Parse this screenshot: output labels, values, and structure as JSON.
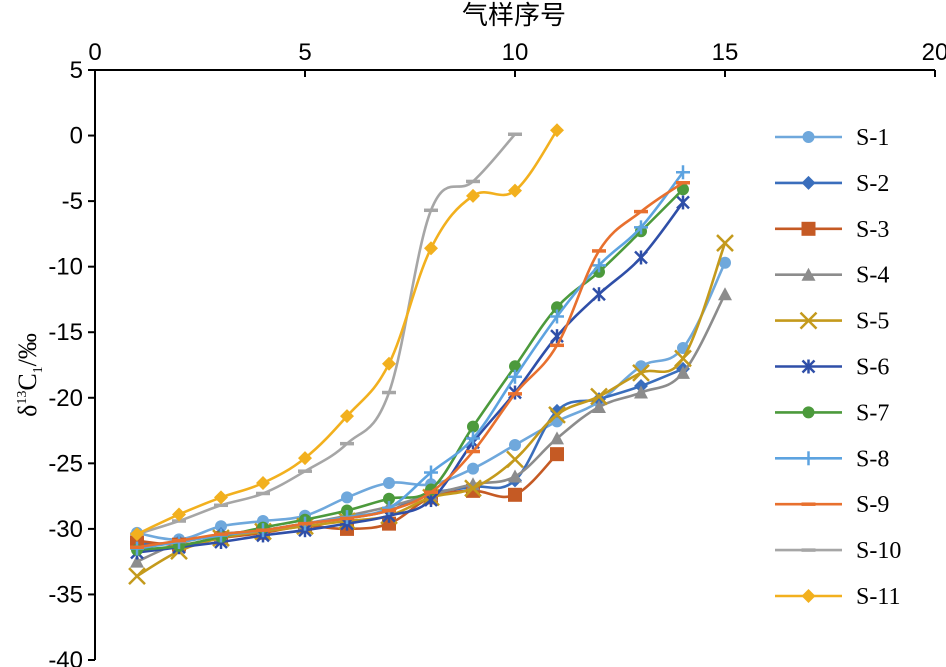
{
  "chart_data": {
    "type": "line",
    "xlabel": "气样序号",
    "ylabel": "δ13C1/‰",
    "ylabel_parts": {
      "delta": "δ",
      "sup": "13",
      "base": "C",
      "sub": "1",
      "unit": "/‰"
    },
    "xlim": [
      0,
      20
    ],
    "ylim": [
      -40,
      5
    ],
    "xticks": [
      0,
      5,
      10,
      15,
      20
    ],
    "yticks": [
      5,
      0,
      -5,
      -10,
      -15,
      -20,
      -25,
      -30,
      -35,
      -40
    ],
    "x_axis_position": "top",
    "grid": false,
    "legend_position": "right",
    "series": [
      {
        "name": "S-1",
        "color": "#6FA8DC",
        "marker": "circle",
        "x": [
          1,
          2,
          3,
          4,
          5,
          6,
          7,
          8,
          9,
          10,
          11,
          12,
          13,
          14,
          15
        ],
        "y": [
          -30.3,
          -30.8,
          -29.8,
          -29.4,
          -29.0,
          -27.6,
          -26.5,
          -26.6,
          -25.4,
          -23.6,
          -21.8,
          -20.3,
          -17.6,
          -16.2,
          -9.7
        ]
      },
      {
        "name": "S-2",
        "color": "#3A6EBC",
        "marker": "diamond",
        "x": [
          1,
          2,
          3,
          4,
          5,
          6,
          7,
          8,
          9,
          10,
          11,
          12,
          13,
          14
        ],
        "y": [
          -31.2,
          -31.0,
          -30.4,
          -30.1,
          -29.6,
          -29.2,
          -28.6,
          -27.3,
          -26.8,
          -26.3,
          -21.0,
          -20.1,
          -19.1,
          -17.8
        ]
      },
      {
        "name": "S-3",
        "color": "#C55A24",
        "marker": "square",
        "x": [
          1,
          2,
          3,
          4,
          5,
          6,
          7,
          8,
          9,
          10,
          11
        ],
        "y": [
          -30.9,
          -31.2,
          -30.7,
          -30.3,
          -29.8,
          -30.0,
          -29.6,
          -27.6,
          -27.1,
          -27.4,
          -24.3
        ]
      },
      {
        "name": "S-4",
        "color": "#8C8C8C",
        "marker": "triangle",
        "x": [
          1,
          2,
          3,
          4,
          5,
          6,
          7,
          8,
          9,
          10,
          11,
          12,
          13,
          14,
          15
        ],
        "y": [
          -32.5,
          -31.1,
          -30.5,
          -30.1,
          -29.6,
          -29.0,
          -28.3,
          -27.4,
          -26.6,
          -26.0,
          -23.1,
          -20.7,
          -19.6,
          -18.1,
          -12.1
        ]
      },
      {
        "name": "S-5",
        "color": "#C49A1C",
        "marker": "x",
        "x": [
          1,
          2,
          3,
          4,
          5,
          6,
          7,
          8,
          9,
          10,
          11,
          12,
          13,
          14,
          15
        ],
        "y": [
          -33.6,
          -31.7,
          -30.7,
          -30.2,
          -29.8,
          -29.4,
          -29.0,
          -27.6,
          -26.9,
          -24.7,
          -21.3,
          -19.9,
          -18.1,
          -17.0,
          -8.2
        ]
      },
      {
        "name": "S-6",
        "color": "#2F4FA8",
        "marker": "star",
        "x": [
          1,
          2,
          3,
          4,
          5,
          6,
          7,
          8,
          9,
          10,
          11,
          12,
          13,
          14
        ],
        "y": [
          -31.8,
          -31.4,
          -31.0,
          -30.5,
          -30.1,
          -29.6,
          -29.0,
          -27.8,
          -23.4,
          -19.6,
          -15.3,
          -12.1,
          -9.3,
          -5.1
        ]
      },
      {
        "name": "S-7",
        "color": "#4C9A3C",
        "marker": "circle",
        "x": [
          1,
          2,
          3,
          4,
          5,
          6,
          7,
          8,
          9,
          10,
          11,
          12,
          13,
          14
        ],
        "y": [
          -31.6,
          -31.3,
          -30.6,
          -29.9,
          -29.3,
          -28.6,
          -27.7,
          -27.0,
          -22.2,
          -17.6,
          -13.1,
          -10.4,
          -7.3,
          -4.1
        ]
      },
      {
        "name": "S-8",
        "color": "#5DA3E0",
        "marker": "plus",
        "x": [
          1,
          2,
          3,
          4,
          5,
          6,
          7,
          8,
          9,
          10,
          11,
          12,
          13,
          14
        ],
        "y": [
          -31.5,
          -31.0,
          -30.5,
          -30.1,
          -29.6,
          -29.1,
          -28.4,
          -25.7,
          -23.1,
          -18.4,
          -13.8,
          -9.9,
          -7.0,
          -2.8
        ]
      },
      {
        "name": "S-9",
        "color": "#E8702E",
        "marker": "dash",
        "x": [
          1,
          2,
          3,
          4,
          5,
          6,
          7,
          8,
          9,
          10,
          11,
          12,
          13,
          14
        ],
        "y": [
          -31.4,
          -30.9,
          -30.4,
          -30.1,
          -29.6,
          -29.2,
          -28.6,
          -27.2,
          -24.1,
          -19.7,
          -16.0,
          -8.8,
          -5.8,
          -3.6
        ]
      },
      {
        "name": "S-10",
        "color": "#A6A6A6",
        "marker": "dash",
        "x": [
          1,
          2,
          3,
          4,
          5,
          6,
          7,
          8,
          9,
          10
        ],
        "y": [
          -30.4,
          -29.4,
          -28.2,
          -27.3,
          -25.6,
          -23.5,
          -19.6,
          -5.7,
          -3.5,
          0.1
        ]
      },
      {
        "name": "S-11",
        "color": "#F2B01E",
        "marker": "diamond",
        "x": [
          1,
          2,
          3,
          4,
          5,
          6,
          7,
          8,
          9,
          10,
          11
        ],
        "y": [
          -30.4,
          -28.9,
          -27.6,
          -26.5,
          -24.6,
          -21.4,
          -17.4,
          -8.6,
          -4.6,
          -4.2,
          0.4
        ]
      }
    ]
  }
}
